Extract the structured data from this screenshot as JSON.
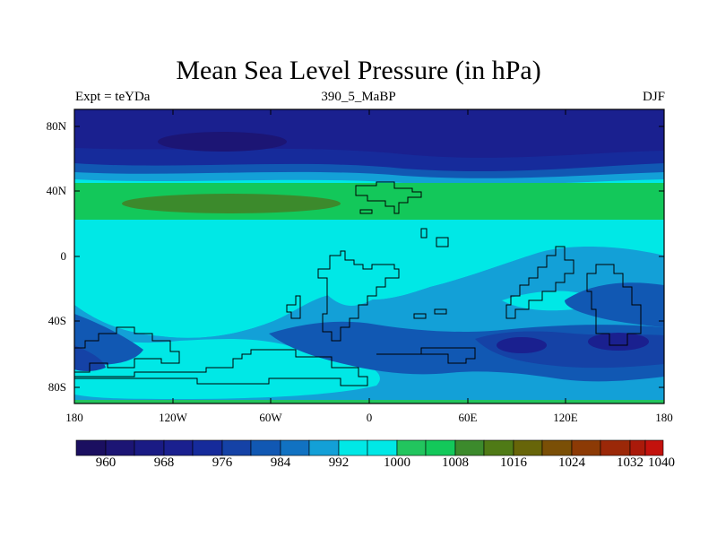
{
  "title": "Mean Sea Level Pressure (in hPa)",
  "subtitle_left": "Expt = teYDa",
  "subtitle_center": "390_5_MaBP",
  "subtitle_right": "DJF",
  "lat_labels": [
    "80N",
    "40N",
    "0",
    "40S",
    "80S"
  ],
  "lon_labels": [
    "180",
    "120W",
    "60W",
    "0",
    "60E",
    "120E",
    "180"
  ],
  "colorbar_labels": [
    "960",
    "968",
    "976",
    "984",
    "992",
    "1000",
    "1008",
    "1016",
    "1024",
    "1032",
    "1040"
  ],
  "colors": {
    "c960": "#1b0f60",
    "c964": "#1c1574",
    "c968": "#1a1b84",
    "c972": "#1a208f",
    "c976": "#162b9b",
    "c980": "#1542a6",
    "c984": "#1158b3",
    "c988": "#1172c2",
    "c992": "#13a0d7",
    "c996": "#00e8e6",
    "c1000": "#00e8e6",
    "c1004": "#22c55e",
    "c1008": "#13c85a",
    "c1012": "#3c8a2c",
    "c1016": "#4f7a16",
    "c1020": "#676509",
    "c1024": "#7a4f06",
    "c1028": "#8c3a05",
    "c1032": "#9b2808",
    "c1036": "#aa1a0a",
    "c1040": "#c3120d"
  }
}
